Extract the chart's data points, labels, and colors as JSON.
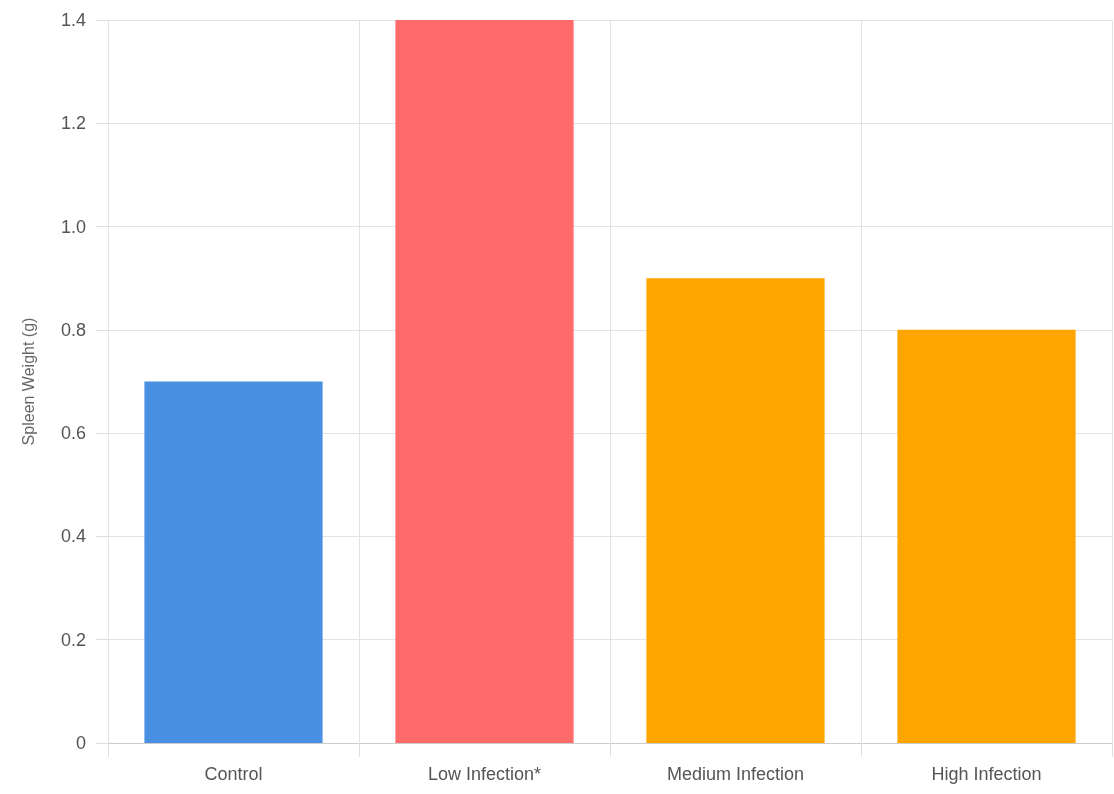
{
  "chart_data": {
    "type": "bar",
    "ylabel": "Spleen Weight (g)",
    "categories": [
      "Control",
      "Low Infection*",
      "Medium Infection",
      "High Infection"
    ],
    "values": [
      0.7,
      1.4,
      0.9,
      0.8
    ],
    "colors": [
      "#4a90e2",
      "#ff6b6b",
      "#ffa500",
      "#ffa500"
    ],
    "ylim": [
      0,
      1.4
    ],
    "yticks": [
      0,
      0.2,
      0.4,
      0.6,
      0.8,
      {
        "value": 1,
        "label": "1.0"
      },
      1.2,
      1.4
    ],
    "grid": true
  }
}
